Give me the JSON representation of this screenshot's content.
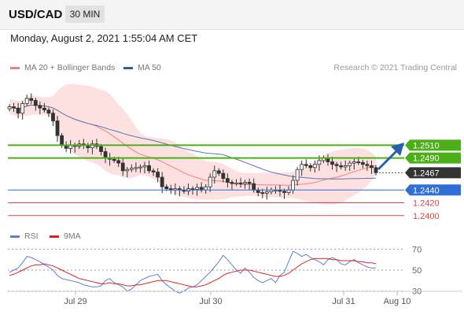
{
  "header": {
    "symbol": "USD/CAD",
    "timeframe": "30 MIN"
  },
  "date_line": "Monday, August 2, 2021 1:55:04 AM CET",
  "legend": {
    "ma20": {
      "label": "MA 20 + Bollinger Bands",
      "color": "#f08080"
    },
    "ma50": {
      "label": "MA 50",
      "color": "#3a5a9a"
    },
    "credit": "Research © 2021 Trading Central"
  },
  "rsi_legend": {
    "rsi": {
      "label": "RSI",
      "color": "#5b7fd4"
    },
    "ma9": {
      "label": "9MA",
      "color": "#e02020"
    }
  },
  "x_labels": [
    "Jul 29",
    "Jul 30",
    "Jul 31",
    "Aug 10"
  ],
  "price_levels": [
    {
      "label": "1.2510",
      "type": "resistance",
      "color": "#4caf1a"
    },
    {
      "label": "1.2490",
      "type": "resistance",
      "color": "#4caf1a"
    },
    {
      "label": "1.2467",
      "type": "current",
      "color": "#333333"
    },
    {
      "label": "1.2440",
      "type": "pivot",
      "color": "#2f6fd6"
    },
    {
      "label": "1.2420",
      "type": "support",
      "color": "#e84040"
    },
    {
      "label": "1.2400",
      "type": "support",
      "color": "#e84040"
    }
  ],
  "rsi_levels": [
    "70",
    "50",
    "30"
  ],
  "chart_data": [
    {
      "type": "candlestick",
      "title": "USD/CAD",
      "ylim": [
        1.238,
        1.262
      ],
      "close": [
        1.257,
        1.2568,
        1.256,
        1.2575,
        1.2583,
        1.258,
        1.2572,
        1.2568,
        1.2565,
        1.256,
        1.2548,
        1.2525,
        1.251,
        1.2505,
        1.251,
        1.2508,
        1.2512,
        1.251,
        1.2506,
        1.2512,
        1.2508,
        1.25,
        1.249,
        1.2488,
        1.2486,
        1.2482,
        1.247,
        1.2472,
        1.2474,
        1.2475,
        1.2476,
        1.2478,
        1.247,
        1.2468,
        1.246,
        1.2445,
        1.2442,
        1.244,
        1.2442,
        1.244,
        1.2438,
        1.2442,
        1.2441,
        1.2444,
        1.244,
        1.2445,
        1.246,
        1.247,
        1.2466,
        1.2458,
        1.2452,
        1.245,
        1.2451,
        1.245,
        1.2452,
        1.245,
        1.244,
        1.2436,
        1.2435,
        1.2437,
        1.244,
        1.244,
        1.2438,
        1.2436,
        1.244,
        1.2455,
        1.2472,
        1.248,
        1.2478,
        1.2475,
        1.248,
        1.2486,
        1.249,
        1.2484,
        1.248,
        1.2478,
        1.2476,
        1.2478,
        1.2482,
        1.2484,
        1.2483,
        1.248,
        1.2478,
        1.2475,
        1.2467
      ]
    },
    {
      "type": "line",
      "title": "RSI",
      "ylim": [
        20,
        80
      ],
      "rsi": [
        48,
        50,
        52,
        57,
        63,
        62,
        60,
        58,
        55,
        53,
        50,
        45,
        42,
        41,
        40,
        39,
        38,
        36,
        35,
        34,
        34,
        35,
        40,
        42,
        38,
        36,
        34,
        30,
        32,
        36,
        40,
        42,
        44,
        45,
        46,
        40,
        36,
        33,
        30,
        28,
        30,
        33,
        34,
        36,
        40,
        44,
        48,
        53,
        58,
        64,
        60,
        55,
        50,
        47,
        52,
        48,
        43,
        40,
        38,
        40,
        42,
        38,
        45,
        48,
        58,
        68,
        66,
        63,
        65,
        62,
        60,
        58,
        55,
        60,
        62,
        60,
        56,
        55,
        58,
        60,
        57,
        55,
        53,
        52,
        52
      ],
      "ma9": [
        45,
        46,
        48,
        50,
        52,
        54,
        55,
        55,
        56,
        55,
        54,
        52,
        50,
        48,
        46,
        44,
        42,
        41,
        40,
        39,
        38,
        37,
        37,
        38,
        37,
        37,
        36,
        35,
        35,
        36,
        36,
        37,
        38,
        39,
        40,
        40,
        40,
        39,
        38,
        37,
        36,
        35,
        34,
        34,
        35,
        36,
        38,
        40,
        42,
        45,
        47,
        48,
        49,
        50,
        50,
        50,
        49,
        48,
        47,
        46,
        45,
        44,
        44,
        45,
        47,
        50,
        53,
        56,
        58,
        60,
        61,
        61,
        61,
        61,
        60,
        60,
        59,
        59,
        59,
        59,
        58,
        58,
        57,
        57,
        56
      ]
    }
  ]
}
